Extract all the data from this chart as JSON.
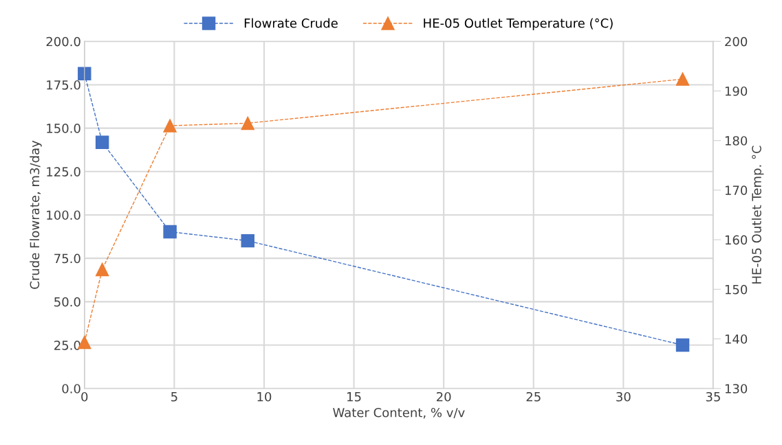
{
  "chart_data": {
    "type": "line",
    "xlabel": "Water Content, % v/v",
    "ylabel": "Crude Flowrate, m3/day",
    "y2label": "HE-05 Outlet Temp. °C",
    "xlim": [
      0,
      35
    ],
    "xticks": [
      0,
      5,
      10,
      15,
      20,
      25,
      30,
      35
    ],
    "ylim": [
      0,
      200
    ],
    "yticks": [
      {
        "value": 0,
        "label": "0.0"
      },
      {
        "value": 25,
        "label": "25.0"
      },
      {
        "value": 50,
        "label": "50.0"
      },
      {
        "value": 75,
        "label": "75.0"
      },
      {
        "value": 100,
        "label": "100.0"
      },
      {
        "value": 125,
        "label": "125.0"
      },
      {
        "value": 150,
        "label": "150.0"
      },
      {
        "value": 175,
        "label": "175.0"
      },
      {
        "value": 200,
        "label": "200.0"
      }
    ],
    "y2lim": [
      130,
      200
    ],
    "y2ticks": [
      130,
      140,
      150,
      160,
      170,
      180,
      190,
      200
    ],
    "grid": true,
    "legend": "top",
    "line_style": "dashed",
    "series": [
      {
        "name": "Flowrate Crude",
        "color": "#4472c4",
        "marker": "square",
        "x": [
          0,
          0.99,
          4.76,
          9.09,
          33.3
        ],
        "values": [
          181.4,
          141.8,
          90.3,
          85.1,
          25.0
        ]
      },
      {
        "name": "HE-05 Outlet Temperature (°C)",
        "color": "#ed7d31",
        "marker": "triangle",
        "axis": "y2",
        "x": [
          0,
          0.99,
          4.76,
          9.09,
          33.3
        ],
        "values": [
          139.3,
          154.0,
          183.0,
          183.5,
          192.4
        ]
      }
    ]
  }
}
